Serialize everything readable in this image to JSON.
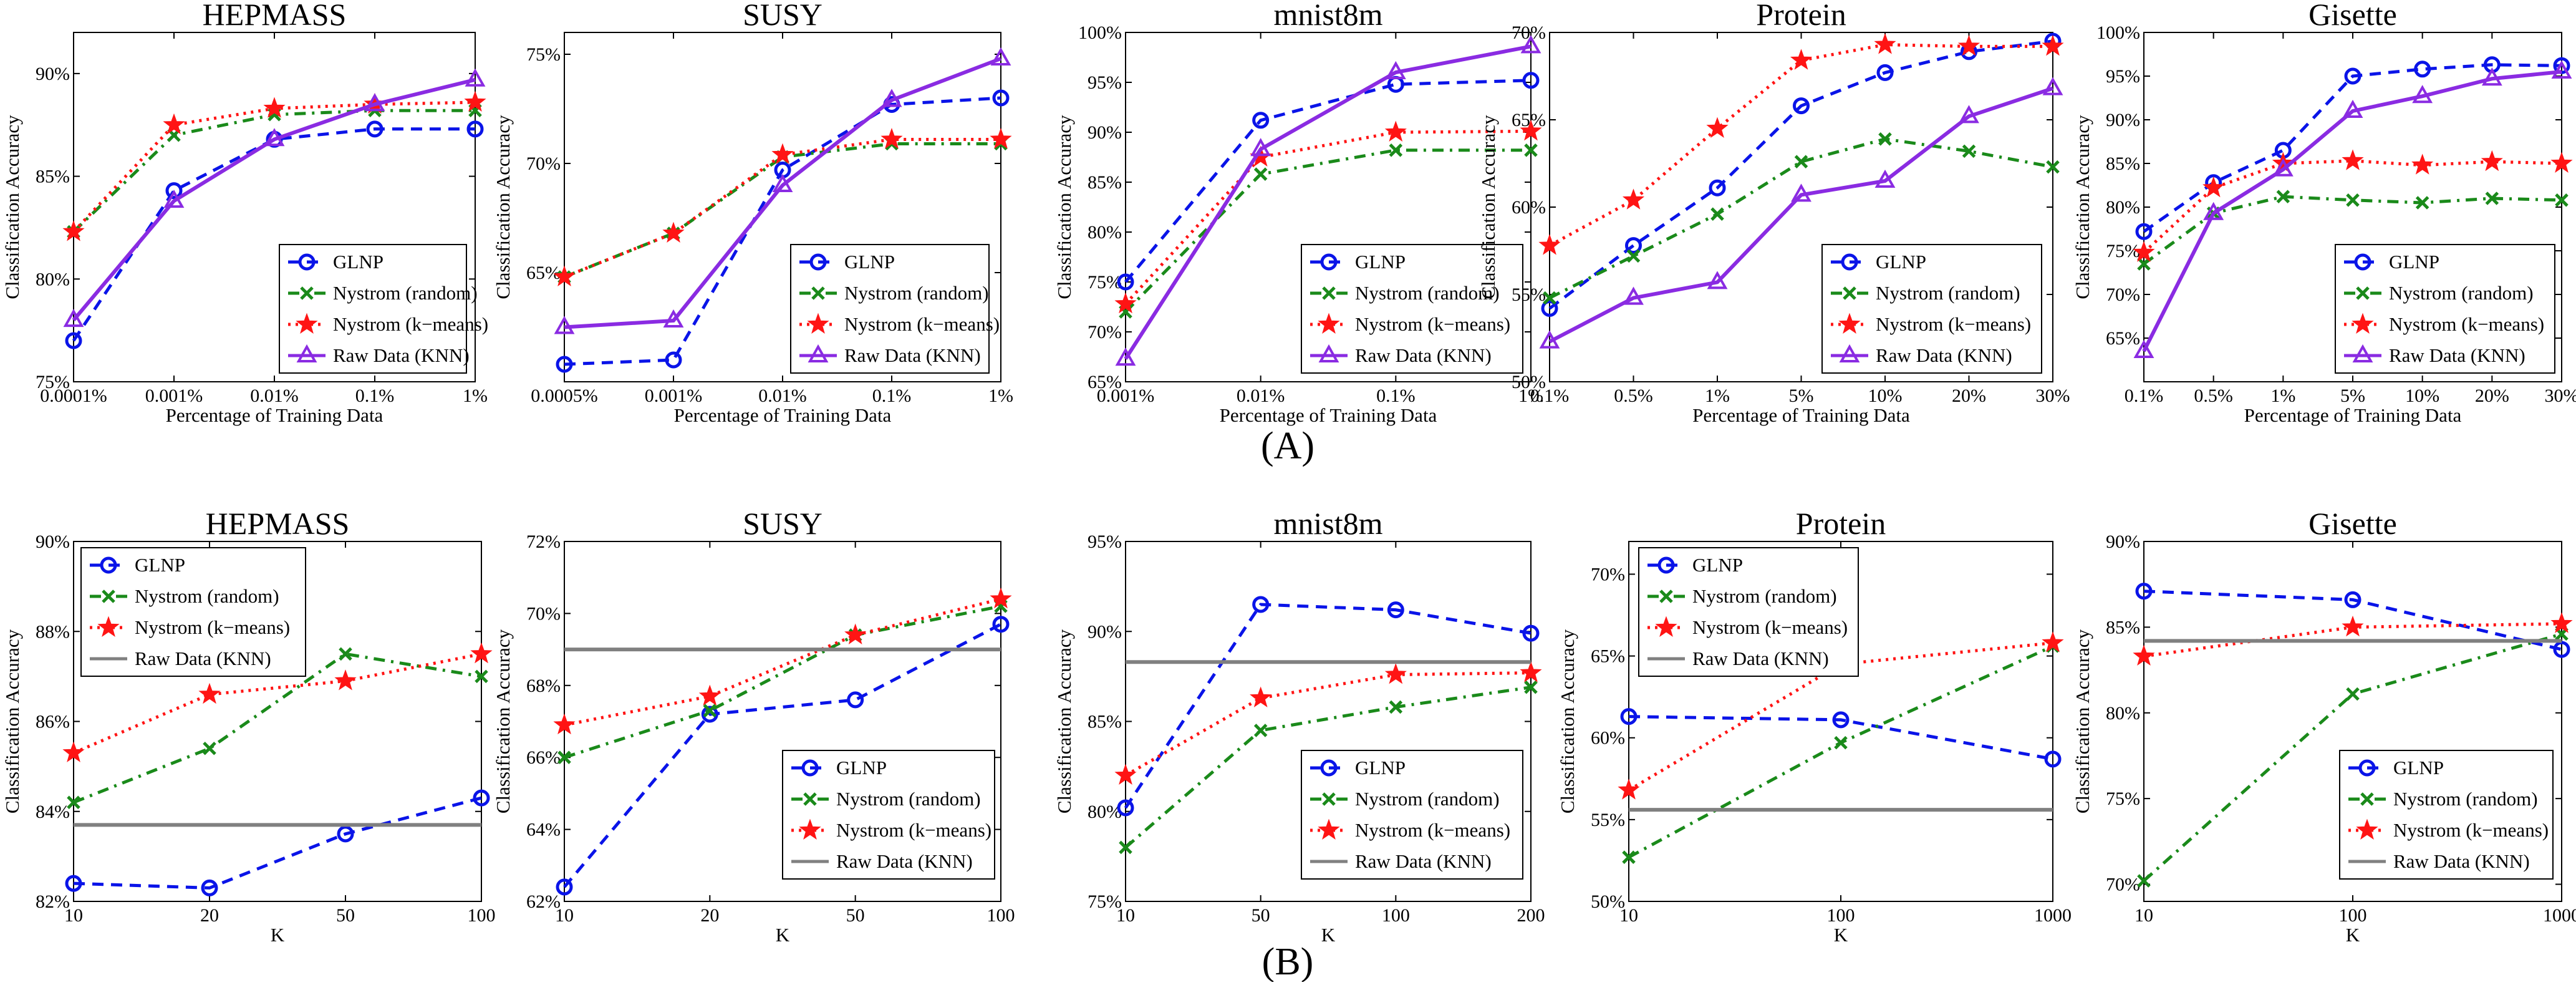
{
  "panel_labels": [
    "(A)",
    "(B)"
  ],
  "chart_data": [
    {
      "type": "line",
      "title": "HEPMASS",
      "xlabel": "Percentage of Training Data",
      "ylabel": "Classification Accuracy",
      "categories": [
        "0.0001%",
        "0.001%",
        "0.01%",
        "0.1%",
        "1%"
      ],
      "yticks": [
        "75%",
        "80%",
        "85%",
        "90%"
      ],
      "ylim": [
        75,
        92
      ],
      "ytick_values": [
        75,
        80,
        85,
        90
      ],
      "legend_position": "bottom-right",
      "series": [
        {
          "name": "GLNP",
          "values": [
            77.0,
            84.3,
            86.8,
            87.3,
            87.3
          ]
        },
        {
          "name": "Nystrom (random)",
          "values": [
            82.3,
            87.0,
            88.0,
            88.2,
            88.2
          ]
        },
        {
          "name": "Nystrom (k−means)",
          "values": [
            82.3,
            87.5,
            88.3,
            88.5,
            88.6
          ]
        },
        {
          "name": "Raw Data (KNN)",
          "values": [
            78.0,
            83.8,
            86.8,
            88.5,
            89.7
          ]
        }
      ]
    },
    {
      "type": "line",
      "title": "SUSY",
      "xlabel": "Percentage of Training Data",
      "ylabel": "Classification Accuracy",
      "categories": [
        "0.0005%",
        "0.001%",
        "0.01%",
        "0.1%",
        "1%"
      ],
      "yticks": [
        "65%",
        "70%",
        "75%"
      ],
      "ylim": [
        60,
        76
      ],
      "ytick_values": [
        65,
        70,
        75
      ],
      "legend_position": "bottom-right",
      "series": [
        {
          "name": "GLNP",
          "values": [
            60.8,
            61.0,
            69.7,
            72.7,
            73.0
          ]
        },
        {
          "name": "Nystrom (random)",
          "values": [
            64.8,
            66.8,
            70.3,
            70.9,
            70.9
          ]
        },
        {
          "name": "Nystrom (k−means)",
          "values": [
            64.8,
            66.8,
            70.4,
            71.1,
            71.1
          ]
        },
        {
          "name": "Raw Data (KNN)",
          "values": [
            62.5,
            62.8,
            69.0,
            72.9,
            74.8
          ]
        }
      ]
    },
    {
      "type": "line",
      "title": "mnist8m",
      "xlabel": "Percentage of Training Data",
      "ylabel": "Classification Accuracy",
      "categories": [
        "0.001%",
        "0.01%",
        "0.1%",
        "1%"
      ],
      "yticks": [
        "65%",
        "70%",
        "75%",
        "80%",
        "85%",
        "90%",
        "95%",
        "100%"
      ],
      "ylim": [
        65,
        100
      ],
      "ytick_values": [
        65,
        70,
        75,
        80,
        85,
        90,
        95,
        100
      ],
      "legend_position": "bottom-right",
      "series": [
        {
          "name": "GLNP",
          "values": [
            75.0,
            91.2,
            94.8,
            95.2
          ]
        },
        {
          "name": "Nystrom (random)",
          "values": [
            72.0,
            85.8,
            88.2,
            88.2
          ]
        },
        {
          "name": "Nystrom (k−means)",
          "values": [
            72.8,
            87.5,
            90.0,
            90.1
          ]
        },
        {
          "name": "Raw Data (KNN)",
          "values": [
            67.3,
            88.3,
            96.0,
            98.6
          ]
        }
      ]
    },
    {
      "type": "line",
      "title": "Protein",
      "xlabel": "Percentage of Training Data",
      "ylabel": "Classification Accuracy",
      "categories": [
        "0.1%",
        "0.5%",
        "1%",
        "5%",
        "10%",
        "20%",
        "30%"
      ],
      "yticks": [
        "50%",
        "55%",
        "60%",
        "65%",
        "70%"
      ],
      "ylim": [
        50,
        70
      ],
      "ytick_values": [
        50,
        55,
        60,
        65,
        70
      ],
      "legend_position": "bottom-right",
      "series": [
        {
          "name": "GLNP",
          "values": [
            54.2,
            57.8,
            61.1,
            65.8,
            67.7,
            68.9,
            69.5
          ]
        },
        {
          "name": "Nystrom (random)",
          "values": [
            54.8,
            57.2,
            59.6,
            62.6,
            63.9,
            63.2,
            62.3
          ]
        },
        {
          "name": "Nystrom (k−means)",
          "values": [
            57.8,
            60.4,
            64.5,
            68.4,
            69.3,
            69.2,
            69.2
          ]
        },
        {
          "name": "Raw Data (KNN)",
          "values": [
            52.3,
            54.8,
            55.7,
            60.7,
            61.5,
            65.2,
            66.8
          ]
        }
      ]
    },
    {
      "type": "line",
      "title": "Gisette",
      "xlabel": "Percentage of Training Data",
      "ylabel": "Classification Accuracy",
      "categories": [
        "0.1%",
        "0.5%",
        "1%",
        "5%",
        "10%",
        "20%",
        "30%"
      ],
      "yticks": [
        "65%",
        "70%",
        "75%",
        "80%",
        "85%",
        "90%",
        "95%",
        "100%"
      ],
      "ylim": [
        60,
        100
      ],
      "ytick_values": [
        65,
        70,
        75,
        80,
        85,
        90,
        95,
        100
      ],
      "legend_position": "bottom-right",
      "series": [
        {
          "name": "GLNP",
          "values": [
            77.2,
            82.8,
            86.5,
            95.0,
            95.8,
            96.3,
            96.2
          ]
        },
        {
          "name": "Nystrom (random)",
          "values": [
            73.5,
            79.3,
            81.2,
            80.8,
            80.5,
            81.0,
            80.8
          ]
        },
        {
          "name": "Nystrom (k−means)",
          "values": [
            74.8,
            82.2,
            85.0,
            85.3,
            84.8,
            85.2,
            85.0
          ]
        },
        {
          "name": "Raw Data (KNN)",
          "values": [
            63.5,
            79.3,
            84.3,
            91.0,
            92.7,
            94.7,
            95.5
          ]
        }
      ]
    },
    {
      "type": "line",
      "title": "HEPMASS",
      "xlabel": "K",
      "ylabel": "Classification Accuracy",
      "categories": [
        "10",
        "20",
        "50",
        "100"
      ],
      "yticks": [
        "82%",
        "84%",
        "86%",
        "88%",
        "90%"
      ],
      "ylim": [
        82,
        90
      ],
      "ytick_values": [
        82,
        84,
        86,
        88,
        90
      ],
      "legend_position": "top-left",
      "series": [
        {
          "name": "GLNP",
          "values": [
            82.4,
            82.3,
            83.5,
            84.3
          ]
        },
        {
          "name": "Nystrom (random)",
          "values": [
            84.2,
            85.4,
            87.5,
            87.0
          ]
        },
        {
          "name": "Nystrom (k−means)",
          "values": [
            85.3,
            86.6,
            86.9,
            87.5
          ]
        },
        {
          "name": "Raw Data (KNN)",
          "values": [
            83.7,
            83.7,
            83.7,
            83.7
          ]
        }
      ]
    },
    {
      "type": "line",
      "title": "SUSY",
      "xlabel": "K",
      "ylabel": "Classification Accuracy",
      "categories": [
        "10",
        "20",
        "50",
        "100"
      ],
      "yticks": [
        "62%",
        "64%",
        "66%",
        "68%",
        "70%",
        "72%"
      ],
      "ylim": [
        62,
        72
      ],
      "ytick_values": [
        62,
        64,
        66,
        68,
        70,
        72
      ],
      "legend_position": "bottom-right",
      "series": [
        {
          "name": "GLNP",
          "values": [
            62.4,
            67.2,
            67.6,
            69.7
          ]
        },
        {
          "name": "Nystrom (random)",
          "values": [
            66.0,
            67.3,
            69.4,
            70.2
          ]
        },
        {
          "name": "Nystrom (k−means)",
          "values": [
            66.9,
            67.7,
            69.4,
            70.4
          ]
        },
        {
          "name": "Raw Data (KNN)",
          "values": [
            69.0,
            69.0,
            69.0,
            69.0
          ]
        }
      ]
    },
    {
      "type": "line",
      "title": "mnist8m",
      "xlabel": "K",
      "ylabel": "Classification Accuracy",
      "categories": [
        "10",
        "50",
        "100",
        "200"
      ],
      "yticks": [
        "75%",
        "80%",
        "85%",
        "90%",
        "95%"
      ],
      "ylim": [
        75,
        95
      ],
      "ytick_values": [
        75,
        80,
        85,
        90,
        95
      ],
      "legend_position": "bottom-right",
      "series": [
        {
          "name": "GLNP",
          "values": [
            80.2,
            91.5,
            91.2,
            89.9
          ]
        },
        {
          "name": "Nystrom (random)",
          "values": [
            78.0,
            84.5,
            85.8,
            86.9
          ]
        },
        {
          "name": "Nystrom (k−means)",
          "values": [
            82.0,
            86.3,
            87.6,
            87.7
          ]
        },
        {
          "name": "Raw Data (KNN)",
          "values": [
            88.3,
            88.3,
            88.3,
            88.3
          ]
        }
      ]
    },
    {
      "type": "line",
      "title": "Protein",
      "xlabel": "K",
      "ylabel": "Classification Accuracy",
      "categories": [
        "10",
        "100",
        "1000"
      ],
      "yticks": [
        "50%",
        "55%",
        "60%",
        "65%",
        "70%"
      ],
      "ylim": [
        50,
        72
      ],
      "ytick_values": [
        50,
        55,
        60,
        65,
        70
      ],
      "legend_position": "top-left",
      "series": [
        {
          "name": "GLNP",
          "values": [
            61.3,
            61.1,
            58.7
          ]
        },
        {
          "name": "Nystrom (random)",
          "values": [
            52.7,
            59.7,
            65.6
          ]
        },
        {
          "name": "Nystrom (k−means)",
          "values": [
            56.8,
            64.5,
            65.8
          ]
        },
        {
          "name": "Raw Data (KNN)",
          "values": [
            55.6,
            55.6,
            55.6
          ]
        }
      ]
    },
    {
      "type": "line",
      "title": "Gisette",
      "xlabel": "K",
      "ylabel": "Classification Accuracy",
      "categories": [
        "10",
        "100",
        "1000"
      ],
      "yticks": [
        "70%",
        "75%",
        "80%",
        "85%",
        "90%"
      ],
      "ylim": [
        69,
        90
      ],
      "ytick_values": [
        70,
        75,
        80,
        85,
        90
      ],
      "legend_position": "bottom-right",
      "series": [
        {
          "name": "GLNP",
          "values": [
            87.1,
            86.6,
            83.7
          ]
        },
        {
          "name": "Nystrom (random)",
          "values": [
            70.2,
            81.1,
            84.6
          ]
        },
        {
          "name": "Nystrom (k−means)",
          "values": [
            83.3,
            85.0,
            85.2
          ]
        },
        {
          "name": "Raw Data (KNN)",
          "values": [
            84.2,
            84.2,
            84.2
          ]
        }
      ]
    }
  ],
  "series_styles": [
    {
      "color": "#0a14e8",
      "dash": "dashed",
      "marker": "circle"
    },
    {
      "color": "#1a8a1a",
      "dash": "dashdot",
      "marker": "x"
    },
    {
      "color": "#ff1414",
      "dash": "dotted",
      "marker": "star"
    },
    {
      "color": "#8a2be2",
      "dash": "solid",
      "marker": "triangle"
    }
  ],
  "knn_line_color": "#808080"
}
